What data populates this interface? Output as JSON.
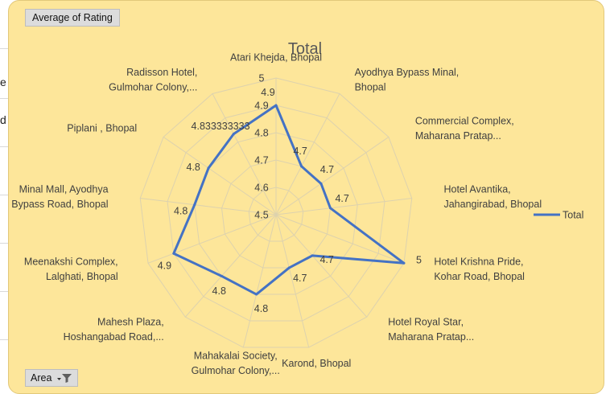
{
  "sheet_fragments": [
    "e",
    "d"
  ],
  "pivot_fields": {
    "value_field": "Average of Rating",
    "axis_field": "Area",
    "filter_icon": "filter-dropdown-icon"
  },
  "chart_data": {
    "type": "radar",
    "title": "Total",
    "categories": [
      [
        "Atari Khejda, Bhopal"
      ],
      [
        "Ayodhya Bypass Minal,",
        "Bhopal"
      ],
      [
        "Commercial Complex,",
        "Maharana Pratap..."
      ],
      [
        "Hotel Avantika,",
        "Jahangirabad, Bhopal"
      ],
      [
        "Hotel Krishna Pride,",
        "Kohar Road, Bhopal"
      ],
      [
        "Hotel Royal Star,",
        "Maharana Pratap..."
      ],
      [
        "Karond, Bhopal"
      ],
      [
        "Mahakalai Society,",
        "Gulmohar Colony,..."
      ],
      [
        "Mahesh Plaza,",
        "Hoshangabad Road,..."
      ],
      [
        "Meenakshi Complex,",
        "Lalghati, Bhopal"
      ],
      [
        "Minal Mall, Ayodhya",
        "Bypass Road, Bhopal"
      ],
      [
        "Piplani , Bhopal"
      ],
      [
        "Radisson Hotel,",
        "Gulmohar Colony,..."
      ]
    ],
    "series": [
      {
        "name": "Total",
        "values": [
          4.9,
          4.7,
          4.7,
          4.7,
          5,
          4.7,
          4.7,
          4.8,
          4.8,
          4.9,
          4.8,
          4.8,
          4.833333333
        ],
        "data_labels": [
          "4.9",
          "4.7",
          "4.7",
          "4.7",
          "5",
          "4.7",
          "4.7",
          "4.8",
          "4.8",
          "4.9",
          "4.8",
          "4.8",
          "4.833333333"
        ],
        "color": "#4472c4"
      }
    ],
    "radial_ticks": [
      "4.5",
      "4.6",
      "4.7",
      "4.8",
      "4.9",
      "5"
    ],
    "rlim": [
      4.5,
      5.0
    ],
    "grid": true,
    "legend_position": "right"
  }
}
